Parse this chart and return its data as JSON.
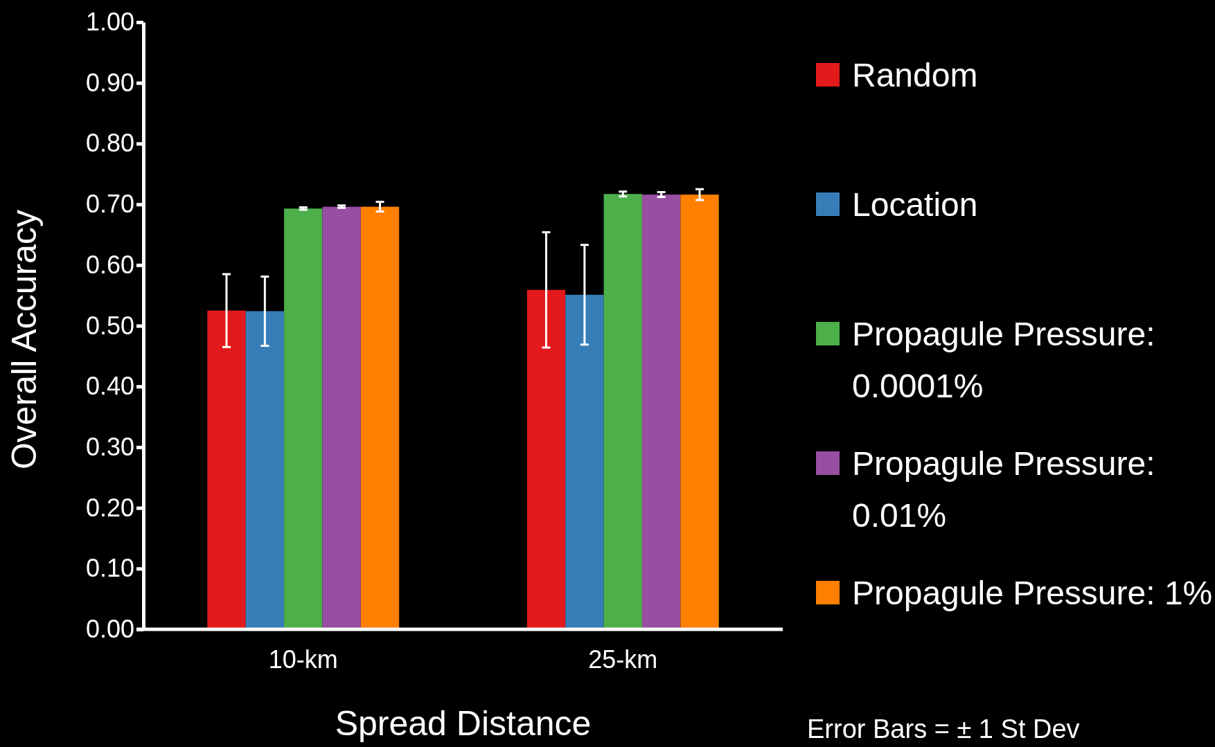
{
  "chart_data": {
    "type": "bar",
    "xlabel": "Spread Distance",
    "ylabel": "Overall Accuracy",
    "categories": [
      "10-km",
      "25-km"
    ],
    "series": [
      {
        "name": "Random",
        "color": "#e31a1c",
        "values": [
          0.525,
          0.559
        ],
        "errors": [
          0.06,
          0.095
        ]
      },
      {
        "name": "Location",
        "color": "#377eb8",
        "values": [
          0.524,
          0.551
        ],
        "errors": [
          0.057,
          0.082
        ]
      },
      {
        "name": "Propagule Pressure: 0.0001%",
        "color": "#4daf4a",
        "values": [
          0.693,
          0.717
        ],
        "errors": [
          0.002,
          0.004
        ]
      },
      {
        "name": "Propagule Pressure: 0.01%",
        "color": "#984ea3",
        "values": [
          0.696,
          0.716
        ],
        "errors": [
          0.002,
          0.004
        ]
      },
      {
        "name": "Propagule Pressure: 1%",
        "color": "#ff7f00",
        "values": [
          0.696,
          0.716
        ],
        "errors": [
          0.008,
          0.009
        ]
      }
    ],
    "ylim": [
      0,
      1
    ],
    "yticks": [
      {
        "value": 0,
        "label": "0.00"
      },
      {
        "value": 0.1,
        "label": "0.10"
      },
      {
        "value": 0.2,
        "label": "0.20"
      },
      {
        "value": 0.3,
        "label": "0.30"
      },
      {
        "value": 0.4,
        "label": "0.40"
      },
      {
        "value": 0.5,
        "label": "0.50"
      },
      {
        "value": 0.6,
        "label": "0.60"
      },
      {
        "value": 0.7,
        "label": "0.70"
      },
      {
        "value": 0.8,
        "label": "0.80"
      },
      {
        "value": 0.9,
        "label": "0.90"
      },
      {
        "value": 1,
        "label": "1.00"
      }
    ],
    "grid": false,
    "legend": "right",
    "annotations": [
      "Error Bars = ± 1 St Dev"
    ]
  }
}
